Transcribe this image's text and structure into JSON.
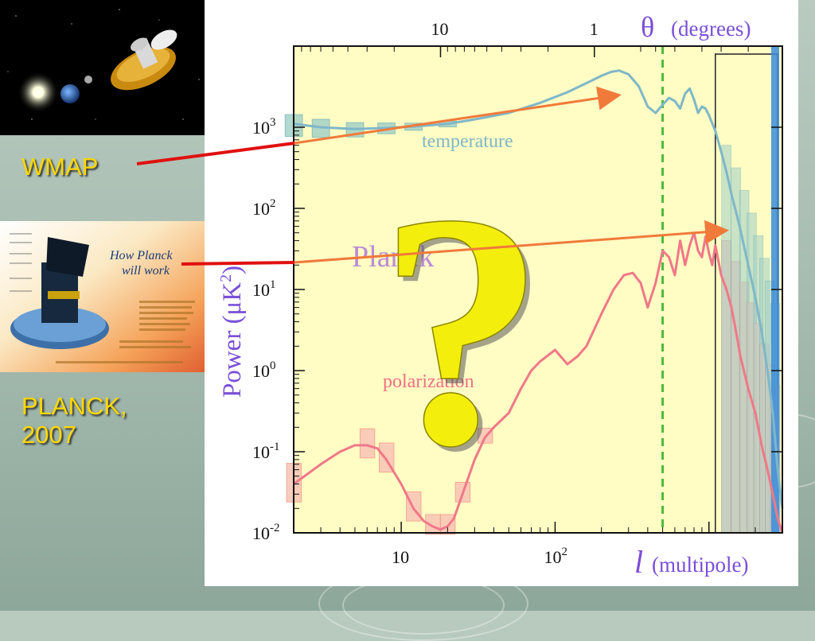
{
  "slide": {
    "captions": [
      {
        "text": "WMAP",
        "color": "#ffd800"
      },
      {
        "text": "PLANCK,",
        "color": "#ffd800"
      },
      {
        "text": "2007",
        "color": "#ffd800"
      }
    ],
    "planck_inset_title_line1": "How Planck",
    "planck_inset_title_line2": "will work",
    "colors": {
      "caption": "#ffd800",
      "pointer_line": "#e01010",
      "arrow": "#f07a3a"
    }
  },
  "chart_data": {
    "type": "line",
    "x_scale": "log",
    "y_scale": "log",
    "xlim": [
      2,
      3000
    ],
    "ylim": [
      0.01,
      10000
    ],
    "top_axis_label_symbol": "θ",
    "top_axis_label_text": "(degrees)",
    "top_ticks": [
      "10",
      "1"
    ],
    "xlabel_symbol": "l",
    "xlabel_text": "(multipole)",
    "x_ticks": [
      "10",
      "10",
      "2"
    ],
    "ylabel": "Power (μK",
    "ylabel_sup": "2",
    "ylabel_close": ")",
    "y_ticks": [
      {
        "base": "10",
        "exp": "3"
      },
      {
        "base": "10",
        "exp": "2"
      },
      {
        "base": "10",
        "exp": "1"
      },
      {
        "base": "10",
        "exp": "0"
      },
      {
        "base": "10",
        "exp": "-1"
      },
      {
        "base": "10",
        "exp": "-2"
      }
    ],
    "annotations": {
      "temperature": "temperature",
      "planck": "Planck",
      "polarization": "polarization",
      "question": "?"
    },
    "series": [
      {
        "name": "temperature",
        "color": "#7fb7c9",
        "x": [
          2,
          3,
          5,
          8,
          12,
          20,
          30,
          50,
          80,
          120,
          160,
          200,
          230,
          260,
          300,
          350,
          400,
          450,
          500,
          550,
          600,
          650,
          700,
          750,
          800,
          850,
          900,
          950,
          1000,
          1100,
          1200,
          1300,
          1400,
          1500,
          1600,
          1800,
          2000,
          2200,
          2400,
          2600,
          2800,
          3000
        ],
        "y": [
          1100,
          1000,
          950,
          980,
          1020,
          1100,
          1250,
          1500,
          2000,
          2700,
          3500,
          4300,
          4800,
          5000,
          4500,
          3200,
          1800,
          1500,
          1900,
          2300,
          2100,
          1700,
          2600,
          3000,
          2200,
          1500,
          1800,
          1700,
          1400,
          900,
          500,
          280,
          150,
          90,
          55,
          20,
          8,
          3,
          1,
          0.3,
          0.06,
          0.02
        ]
      },
      {
        "name": "polarization",
        "color": "#f07888",
        "x": [
          2,
          3,
          4,
          5,
          6,
          7,
          8,
          10,
          12,
          14,
          16,
          18,
          20,
          22,
          25,
          30,
          35,
          40,
          50,
          60,
          70,
          80,
          100,
          120,
          140,
          160,
          200,
          240,
          280,
          320,
          360,
          400,
          450,
          500,
          550,
          600,
          650,
          700,
          750,
          800,
          850,
          900,
          950,
          1000,
          1050,
          1100,
          1200,
          1300,
          1400,
          1500,
          1600,
          1800,
          2000,
          2200,
          2400,
          2600,
          2800,
          3000
        ],
        "y": [
          0.04,
          0.07,
          0.1,
          0.12,
          0.12,
          0.11,
          0.08,
          0.04,
          0.02,
          0.014,
          0.012,
          0.011,
          0.012,
          0.015,
          0.03,
          0.08,
          0.15,
          0.2,
          0.3,
          0.6,
          1.0,
          1.3,
          1.8,
          1.2,
          1.5,
          2.0,
          5,
          10,
          15,
          16,
          12,
          6,
          12,
          30,
          25,
          15,
          40,
          20,
          35,
          50,
          30,
          25,
          45,
          28,
          20,
          35,
          15,
          10,
          6,
          3,
          1.5,
          0.6,
          0.3,
          0.12,
          0.06,
          0.03,
          0.015,
          0.01
        ]
      }
    ],
    "reference_line": {
      "x": 500,
      "color": "#4cba3c",
      "style": "dashed"
    },
    "plot_background": "#fffcc4",
    "grid": false
  }
}
